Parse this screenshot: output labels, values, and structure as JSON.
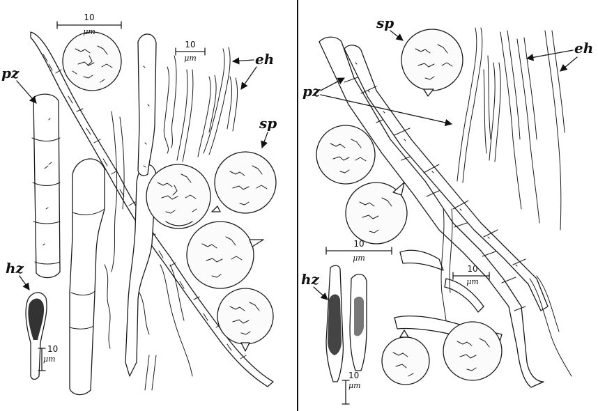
{
  "figure": {
    "panels": [
      {
        "id": "left",
        "labels": [
          {
            "text": "pz"
          },
          {
            "text": "hz"
          },
          {
            "text": "eh"
          },
          {
            "text": "sp"
          }
        ],
        "scale_bars": [
          {
            "value": "10",
            "unit": "μm"
          },
          {
            "value": "10",
            "unit": "μm"
          },
          {
            "value": "10",
            "unit": "μm"
          }
        ]
      },
      {
        "id": "right",
        "labels": [
          {
            "text": "sp"
          },
          {
            "text": "pz"
          },
          {
            "text": "eh"
          },
          {
            "text": "hz"
          }
        ],
        "scale_bars": [
          {
            "value": "10",
            "unit": "μm"
          },
          {
            "value": "10",
            "unit": "μm"
          },
          {
            "value": "10",
            "unit": "μm"
          }
        ]
      }
    ]
  }
}
